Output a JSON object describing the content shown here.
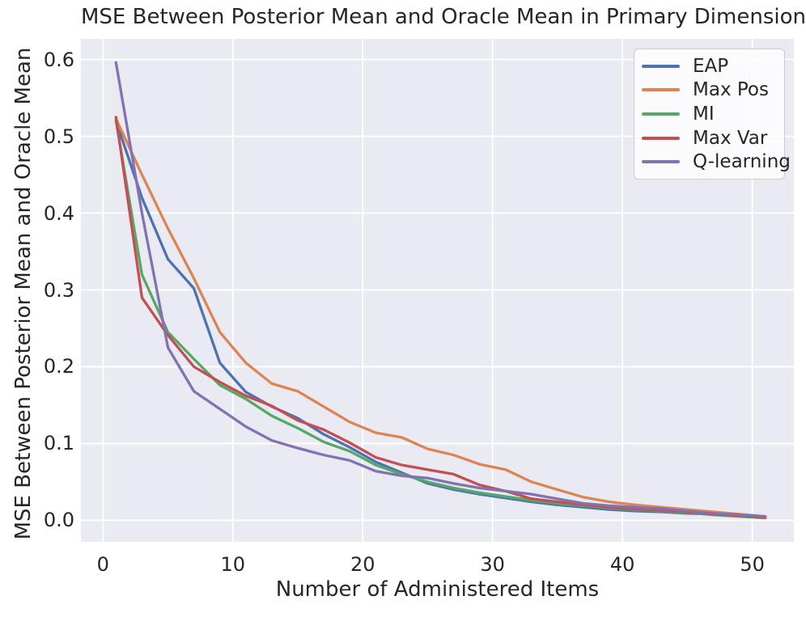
{
  "figure": {
    "background": "#ffffff",
    "axes_background": "#eaeaf2",
    "grid_color": "#ffffff",
    "text_color": "#262626",
    "legend_border_color": "#cccccc"
  },
  "chart_data": {
    "type": "line",
    "title": "MSE Between Posterior Mean and Oracle Mean in Primary Dimension",
    "xlabel": "Number of Administered Items",
    "ylabel": "MSE Between Posterior Mean and Oracle Mean",
    "grid": true,
    "legend_position": "upper right",
    "x_ticks": [
      0,
      10,
      20,
      30,
      40,
      50
    ],
    "y_tick_labels": [
      "0.0",
      "0.1",
      "0.2",
      "0.3",
      "0.4",
      "0.5",
      "0.6"
    ],
    "xlim": [
      -1.7,
      53.2
    ],
    "ylim": [
      -0.028,
      0.627
    ],
    "x": [
      1,
      3,
      5,
      7,
      9,
      11,
      13,
      15,
      17,
      19,
      21,
      23,
      25,
      27,
      29,
      31,
      33,
      35,
      37,
      39,
      41,
      43,
      45,
      47,
      49,
      51
    ],
    "series": [
      {
        "name": "EAP",
        "color": "#4c72b0",
        "values": [
          0.52,
          0.42,
          0.34,
          0.302,
          0.205,
          0.167,
          0.148,
          0.133,
          0.112,
          0.095,
          0.076,
          0.062,
          0.048,
          0.04,
          0.034,
          0.029,
          0.024,
          0.02,
          0.017,
          0.014,
          0.012,
          0.011,
          0.009,
          0.008,
          0.006,
          0.004
        ]
      },
      {
        "name": "Max Pos",
        "color": "#dd8452",
        "values": [
          0.523,
          0.45,
          0.38,
          0.315,
          0.245,
          0.205,
          0.178,
          0.168,
          0.148,
          0.128,
          0.114,
          0.108,
          0.093,
          0.085,
          0.073,
          0.066,
          0.05,
          0.04,
          0.03,
          0.024,
          0.02,
          0.017,
          0.014,
          0.011,
          0.008,
          0.005
        ]
      },
      {
        "name": "MI",
        "color": "#55a868",
        "values": [
          0.52,
          0.32,
          0.245,
          0.21,
          0.176,
          0.158,
          0.136,
          0.12,
          0.102,
          0.09,
          0.072,
          0.06,
          0.05,
          0.042,
          0.036,
          0.031,
          0.026,
          0.022,
          0.019,
          0.016,
          0.014,
          0.012,
          0.01,
          0.007,
          0.005,
          0.003
        ]
      },
      {
        "name": "Max Var",
        "color": "#c44e52",
        "values": [
          0.525,
          0.29,
          0.241,
          0.2,
          0.18,
          0.162,
          0.149,
          0.13,
          0.118,
          0.101,
          0.082,
          0.072,
          0.066,
          0.06,
          0.046,
          0.038,
          0.028,
          0.024,
          0.02,
          0.017,
          0.015,
          0.013,
          0.011,
          0.008,
          0.006,
          0.004
        ]
      },
      {
        "name": "Q-learning",
        "color": "#8172b3",
        "values": [
          0.596,
          0.4,
          0.225,
          0.168,
          0.145,
          0.122,
          0.104,
          0.094,
          0.085,
          0.078,
          0.064,
          0.058,
          0.055,
          0.048,
          0.042,
          0.038,
          0.034,
          0.028,
          0.022,
          0.019,
          0.017,
          0.015,
          0.012,
          0.009,
          0.007,
          0.005
        ]
      }
    ]
  }
}
